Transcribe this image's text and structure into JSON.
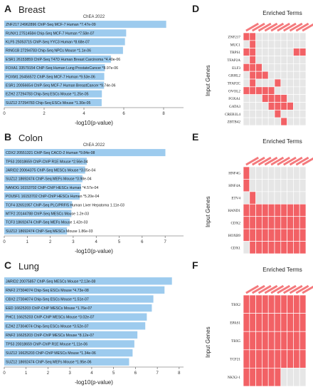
{
  "panels": {
    "A": {
      "letter": "A",
      "title": "Breast"
    },
    "B": {
      "letter": "B",
      "title": "Colon"
    },
    "C": {
      "letter": "C",
      "title": "Lung"
    },
    "D": {
      "letter": "D"
    },
    "E": {
      "letter": "E"
    },
    "F": {
      "letter": "F"
    }
  },
  "colors": {
    "bar": "#9dcbee",
    "cell_on": "#f26165",
    "cell_off": "#e6e6e6",
    "matrix_header": "#f26165"
  },
  "chart_data": [
    {
      "id": "A",
      "type": "bar",
      "orientation": "horizontal",
      "title": "ChEA 2022",
      "xlabel": "-log10(p-value)",
      "xlim": [
        0,
        9
      ],
      "xticks": [
        0,
        2,
        4,
        6,
        8
      ],
      "categories": [
        "ZNF217 24962896 ChIP-Seq MCF-7 Human *7.47e-09",
        "RUNX1 27514584 Chip-Seq MCF-7 Human *7.58e-07",
        "KLF5 25053715 ChIP-Seq YYC3 Human *8.68e-07",
        "RING1B 27294783 Chip-Seq NPCs Mouse *1.1e-06",
        "ESR1 26153859 ChIP-Seq T47D Human Breast Carcinoma *4.40e-06",
        "FOXA1 33579154 ChIP-Seq Human Lung ProstateCancer *8.97e-06",
        "FOXM1 26456572 ChIP-Seq MCF-7 Human *9.53e-06",
        "ESR1 20056654 ChIP-Seq MCF-7 Human BreastCancer *9.74e-06",
        "EZH2 27294783 Chip-Seq ESCs Mouse *1.25e-05",
        "SUZ12 27294783 Chip-Seq ESCs Mouse *1.30e-05"
      ],
      "values": [
        8.13,
        6.12,
        6.06,
        5.96,
        5.36,
        5.05,
        5.02,
        5.01,
        4.9,
        4.89
      ]
    },
    {
      "id": "B",
      "type": "bar",
      "orientation": "horizontal",
      "title": "ChEA 2022",
      "xlabel": "-log10(p-value)",
      "xlim": [
        0,
        7.8
      ],
      "xticks": [
        0,
        1,
        2,
        3,
        4,
        5,
        6,
        7
      ],
      "categories": [
        "CDX2 20551321 ChIP-Seq CACO-2 Human *9.84e-08",
        "TP53 20018659 ChIP-ChIP R1E Mouse *2.56e-04",
        "JARID2 20064375 ChIP-Seq MESCs Mouse *3.05e-04",
        "SUZ12 18692474 ChIP-Seq MEFs Mouse *3.98e-04",
        "NANOG 16153702 ChIP-ChIP HESCs Human *4.57e-04",
        "POU5F1 16153702 ChIP-ChIP HESCs Human *5.20e-04",
        "TCF4 32651957 ChIP-Seq PLC/PRF/5 Human Liver Hepatoma 1.11e-03",
        "MTF2 20144788 ChIP-Seq MESCs Mouse 1.2e-03",
        "TCF3 18692474 ChIP-Seq MEFs Mouse 1.42e-03",
        "SUZ12 18692474 ChIP-Seq MESCs Mouse 1.86e-03"
      ],
      "values": [
        7.01,
        3.59,
        3.52,
        3.4,
        3.34,
        3.28,
        2.95,
        2.92,
        2.85,
        2.73
      ]
    },
    {
      "id": "C",
      "type": "bar",
      "orientation": "horizontal",
      "title": "",
      "xlabel": "-log10(p-value)",
      "xlim": [
        0,
        8.2
      ],
      "xticks": [
        0,
        1,
        2,
        3,
        4,
        5,
        6,
        7,
        8
      ],
      "categories": [
        "JARID2 20075857 ChIP-Seq MESCs Mouse *2.13e-08",
        "RNF2 27304074 Chip-Seq ESCs Mouse *4.73e-08",
        "CBX2 27304074 Chip-Seq ESCs Mouse *1.51e-07",
        "EED 16625203 ChIP-ChIP MESCs Mouse *1.76e-07",
        "PHC1 16625203 ChIP-ChIP MESCs Mouse *3.02e-07",
        "EZH2 27304074 Chip-Seq ESCs Mouse *3.52e-07",
        "RNF2 16625203 ChIP-ChIP MESCs Mouse *8.12e-07",
        "TP53 20018659 ChIP-ChIP R1E Mouse *1.11e-06",
        "SUZ12 16625203 ChIP-ChIP MESCs Mouse *1.34e-06",
        "SUZ12 18692474 ChIP-Seq MEFs Mouse *1.95e-06"
      ],
      "values": [
        7.67,
        7.33,
        6.82,
        6.75,
        6.52,
        6.45,
        6.09,
        5.95,
        5.87,
        5.71
      ]
    },
    {
      "id": "D",
      "type": "heatmap",
      "title": "Enriched Terms",
      "ylabel": "Input Genes",
      "rows": [
        "ZNF217",
        "MUC1",
        "TRPS1",
        "TFAP2A",
        "ELF3",
        "GRHL2",
        "TFAP2C",
        "OVOL2",
        "FOXA1",
        "GATA3",
        "CREB3L4",
        "ZBTB42"
      ],
      "n_cols": 10,
      "matrix": [
        [
          1,
          1,
          0,
          0,
          0,
          0,
          0,
          0,
          0,
          0
        ],
        [
          0,
          1,
          0,
          0,
          0,
          0,
          0,
          0,
          0,
          0
        ],
        [
          1,
          1,
          0,
          0,
          0,
          0,
          0,
          0,
          1,
          1
        ],
        [
          0,
          1,
          0,
          0,
          0,
          0,
          0,
          0,
          0,
          0
        ],
        [
          1,
          1,
          1,
          0,
          0,
          0,
          0,
          0,
          0,
          0
        ],
        [
          0,
          1,
          1,
          1,
          0,
          0,
          0,
          0,
          0,
          0
        ],
        [
          0,
          1,
          0,
          0,
          0,
          1,
          0,
          0,
          0,
          0
        ],
        [
          1,
          1,
          1,
          1,
          1,
          0,
          0,
          0,
          0,
          0
        ],
        [
          0,
          0,
          0,
          1,
          1,
          1,
          1,
          0,
          0,
          0
        ],
        [
          0,
          0,
          0,
          0,
          1,
          1,
          1,
          1,
          0,
          0
        ],
        [
          0,
          0,
          0,
          0,
          0,
          1,
          0,
          0,
          0,
          0
        ],
        [
          0,
          0,
          0,
          0,
          0,
          0,
          1,
          0,
          0,
          0
        ]
      ]
    },
    {
      "id": "E",
      "type": "heatmap",
      "title": "Enriched Terms",
      "ylabel": "Input Genes",
      "rows": [
        "HNF4G",
        "HNF4A",
        "ETV4",
        "HAND1",
        "CDX2",
        "HOXB9",
        "CDX1"
      ],
      "n_cols": 10,
      "matrix": [
        [
          1,
          0,
          0,
          0,
          0,
          0,
          0,
          0,
          0,
          0
        ],
        [
          1,
          0,
          0,
          0,
          0,
          0,
          0,
          0,
          0,
          0
        ],
        [
          0,
          1,
          0,
          0,
          0,
          0,
          0,
          0,
          0,
          0
        ],
        [
          1,
          1,
          1,
          1,
          1,
          1,
          1,
          1,
          1,
          1
        ],
        [
          1,
          1,
          1,
          1,
          1,
          1,
          1,
          1,
          1,
          1
        ],
        [
          1,
          1,
          1,
          1,
          1,
          1,
          1,
          1,
          1,
          1
        ],
        [
          0,
          1,
          1,
          1,
          1,
          1,
          1,
          1,
          1,
          1
        ]
      ]
    },
    {
      "id": "F",
      "type": "heatmap",
      "title": "Enriched Terms",
      "ylabel": "Input Genes",
      "rows": [
        "TBX2",
        "EPAS1",
        "TBX5",
        "TCF21",
        "NKX2-1"
      ],
      "n_cols": 10,
      "matrix": [
        [
          1,
          1,
          1,
          1,
          1,
          1,
          1,
          1,
          1,
          1
        ],
        [
          1,
          1,
          1,
          1,
          1,
          1,
          1,
          1,
          1,
          1
        ],
        [
          1,
          1,
          1,
          1,
          1,
          1,
          1,
          1,
          1,
          1
        ],
        [
          1,
          1,
          1,
          1,
          1,
          1,
          1,
          1,
          1,
          1
        ],
        [
          1,
          1,
          1,
          1,
          1,
          1,
          0,
          0,
          0,
          0
        ]
      ]
    }
  ]
}
